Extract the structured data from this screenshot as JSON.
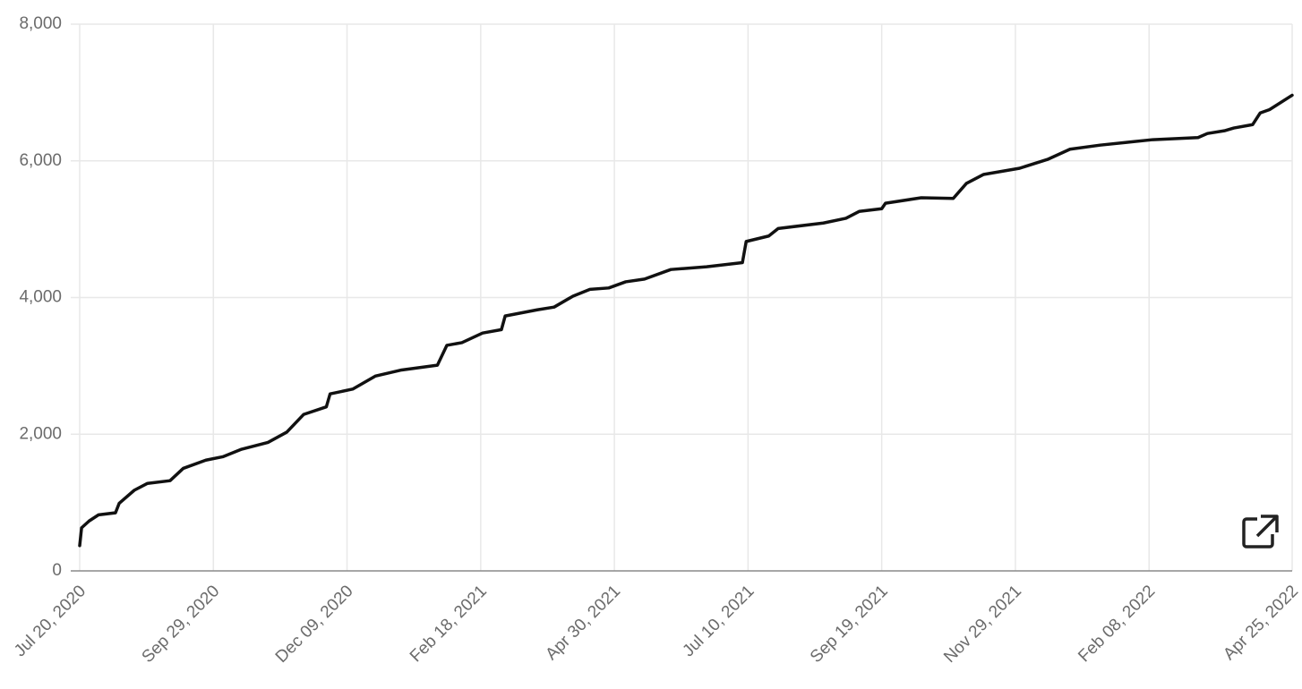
{
  "chart_data": {
    "type": "line",
    "color": "#111111",
    "grid": true,
    "x": [
      "2020-07-20",
      "2020-07-21",
      "2020-07-25",
      "2020-07-30",
      "2020-08-08",
      "2020-08-10",
      "2020-08-18",
      "2020-08-25",
      "2020-09-06",
      "2020-09-13",
      "2020-09-25",
      "2020-10-04",
      "2020-10-14",
      "2020-10-28",
      "2020-11-07",
      "2020-11-16",
      "2020-11-28",
      "2020-11-30",
      "2020-12-12",
      "2020-12-24",
      "2021-01-07",
      "2021-01-26",
      "2021-01-31",
      "2021-02-08",
      "2021-02-19",
      "2021-03-01",
      "2021-03-03",
      "2021-03-20",
      "2021-03-29",
      "2021-04-08",
      "2021-04-17",
      "2021-04-27",
      "2021-05-06",
      "2021-05-16",
      "2021-05-30",
      "2021-06-18",
      "2021-07-07",
      "2021-07-09",
      "2021-07-21",
      "2021-07-26",
      "2021-08-19",
      "2021-08-31",
      "2021-09-07",
      "2021-09-19",
      "2021-09-21",
      "2021-10-10",
      "2021-10-27",
      "2021-11-03",
      "2021-11-12",
      "2021-12-01",
      "2021-12-16",
      "2021-12-28",
      "2022-01-13",
      "2022-01-27",
      "2022-02-10",
      "2022-03-06",
      "2022-03-11",
      "2022-03-20",
      "2022-03-25",
      "2022-04-04",
      "2022-04-08",
      "2022-04-13",
      "2022-04-25"
    ],
    "values": [
      370,
      630,
      730,
      820,
      850,
      990,
      1180,
      1280,
      1320,
      1500,
      1620,
      1670,
      1780,
      1880,
      2030,
      2290,
      2400,
      2590,
      2660,
      2850,
      2940,
      3010,
      3300,
      3340,
      3480,
      3530,
      3730,
      3820,
      3860,
      4020,
      4120,
      4140,
      4230,
      4270,
      4410,
      4450,
      4510,
      4820,
      4900,
      5010,
      5090,
      5160,
      5260,
      5300,
      5380,
      5460,
      5450,
      5670,
      5800,
      5890,
      6020,
      6170,
      6230,
      6270,
      6310,
      6340,
      6400,
      6440,
      6480,
      6530,
      6700,
      6750,
      6960
    ],
    "xlim": [
      "2020-07-20",
      "2022-04-25"
    ],
    "xticks": [
      {
        "value": "2020-07-20",
        "label": "Jul 20, 2020"
      },
      {
        "value": "2020-09-29",
        "label": "Sep 29, 2020"
      },
      {
        "value": "2020-12-09",
        "label": "Dec 09, 2020"
      },
      {
        "value": "2021-02-18",
        "label": "Feb 18, 2021"
      },
      {
        "value": "2021-04-30",
        "label": "Apr 30, 2021"
      },
      {
        "value": "2021-07-10",
        "label": "Jul 10, 2021"
      },
      {
        "value": "2021-09-19",
        "label": "Sep 19, 2021"
      },
      {
        "value": "2021-11-29",
        "label": "Nov 29, 2021"
      },
      {
        "value": "2022-02-08",
        "label": "Feb 08, 2022"
      },
      {
        "value": "2022-04-25",
        "label": "Apr 25, 2022"
      }
    ],
    "ylim": [
      0,
      8000
    ],
    "yticks": [
      0,
      {
        "value": 2000,
        "label": "2,000"
      },
      {
        "value": 4000,
        "label": "4,000"
      },
      {
        "value": 6000,
        "label": "6,000"
      },
      {
        "value": 8000,
        "label": "8,000"
      }
    ]
  }
}
